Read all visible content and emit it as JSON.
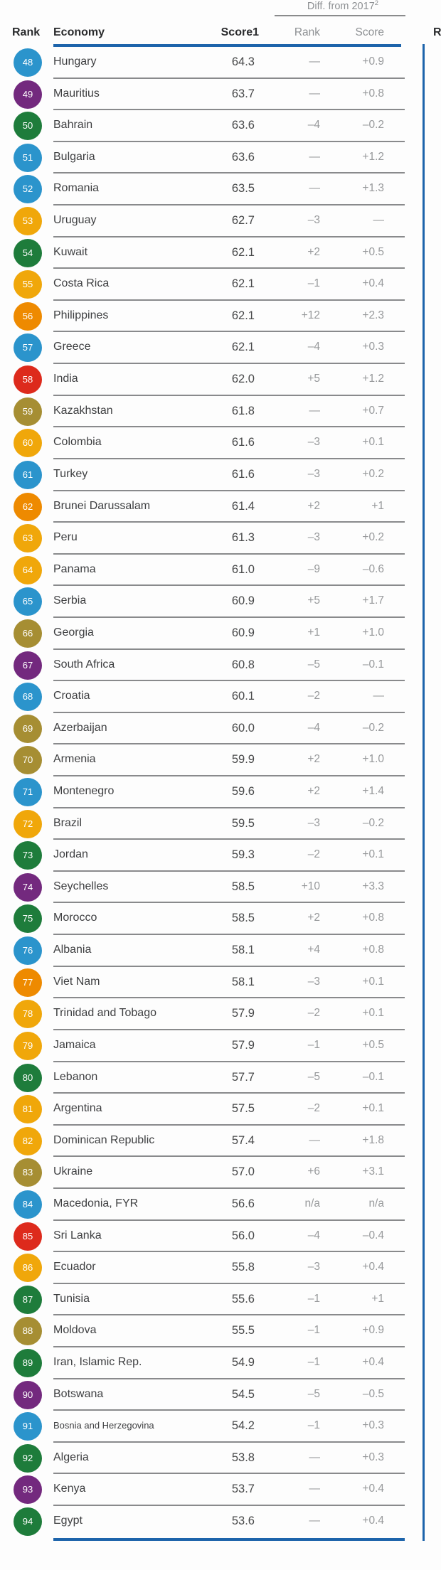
{
  "header": {
    "diff_group_label": "Diff. from 2017",
    "diff_group_footnote": "2",
    "rank_label": "Rank",
    "economy_label": "Economy",
    "score_label": "Score",
    "score_footnote": "1",
    "diff_rank_label": "Rank",
    "diff_score_label": "Score",
    "next_table_partial_label": "R"
  },
  "accent_colors": {
    "table_rule_blue": "#1d64ab",
    "separator_gray": "#898a8c"
  },
  "region_colors": {
    "europe-north-america": "#2b94cc",
    "sub-saharan-africa": "#73297e",
    "middle-east-north-africa": "#1e7c3b",
    "latin-america-caribbean": "#f0a70a",
    "east-asia-pacific": "#ee8a00",
    "south-asia": "#dd2a1c",
    "eurasia": "#a68e33"
  },
  "rows": [
    {
      "rank": "48",
      "economy": "Hungary",
      "score": "64.3",
      "diff_rank": "—",
      "diff_score": "+0.9",
      "region": "europe-north-america"
    },
    {
      "rank": "49",
      "economy": "Mauritius",
      "score": "63.7",
      "diff_rank": "—",
      "diff_score": "+0.8",
      "region": "sub-saharan-africa"
    },
    {
      "rank": "50",
      "economy": "Bahrain",
      "score": "63.6",
      "diff_rank": "–4",
      "diff_score": "–0.2",
      "region": "middle-east-north-africa"
    },
    {
      "rank": "51",
      "economy": "Bulgaria",
      "score": "63.6",
      "diff_rank": "—",
      "diff_score": "+1.2",
      "region": "europe-north-america"
    },
    {
      "rank": "52",
      "economy": "Romania",
      "score": "63.5",
      "diff_rank": "—",
      "diff_score": "+1.3",
      "region": "europe-north-america"
    },
    {
      "rank": "53",
      "economy": "Uruguay",
      "score": "62.7",
      "diff_rank": "–3",
      "diff_score": "—",
      "region": "latin-america-caribbean"
    },
    {
      "rank": "54",
      "economy": "Kuwait",
      "score": "62.1",
      "diff_rank": "+2",
      "diff_score": "+0.5",
      "region": "middle-east-north-africa"
    },
    {
      "rank": "55",
      "economy": "Costa Rica",
      "score": "62.1",
      "diff_rank": "–1",
      "diff_score": "+0.4",
      "region": "latin-america-caribbean"
    },
    {
      "rank": "56",
      "economy": "Philippines",
      "score": "62.1",
      "diff_rank": "+12",
      "diff_score": "+2.3",
      "region": "east-asia-pacific"
    },
    {
      "rank": "57",
      "economy": "Greece",
      "score": "62.1",
      "diff_rank": "–4",
      "diff_score": "+0.3",
      "region": "europe-north-america"
    },
    {
      "rank": "58",
      "economy": "India",
      "score": "62.0",
      "diff_rank": "+5",
      "diff_score": "+1.2",
      "region": "south-asia"
    },
    {
      "rank": "59",
      "economy": "Kazakhstan",
      "score": "61.8",
      "diff_rank": "—",
      "diff_score": "+0.7",
      "region": "eurasia"
    },
    {
      "rank": "60",
      "economy": "Colombia",
      "score": "61.6",
      "diff_rank": "–3",
      "diff_score": "+0.1",
      "region": "latin-america-caribbean"
    },
    {
      "rank": "61",
      "economy": "Turkey",
      "score": "61.6",
      "diff_rank": "–3",
      "diff_score": "+0.2",
      "region": "europe-north-america"
    },
    {
      "rank": "62",
      "economy": "Brunei Darussalam",
      "score": "61.4",
      "diff_rank": "+2",
      "diff_score": "+1",
      "region": "east-asia-pacific"
    },
    {
      "rank": "63",
      "economy": "Peru",
      "score": "61.3",
      "diff_rank": "–3",
      "diff_score": "+0.2",
      "region": "latin-america-caribbean"
    },
    {
      "rank": "64",
      "economy": "Panama",
      "score": "61.0",
      "diff_rank": "–9",
      "diff_score": "–0.6",
      "region": "latin-america-caribbean"
    },
    {
      "rank": "65",
      "economy": "Serbia",
      "score": "60.9",
      "diff_rank": "+5",
      "diff_score": "+1.7",
      "region": "europe-north-america"
    },
    {
      "rank": "66",
      "economy": "Georgia",
      "score": "60.9",
      "diff_rank": "+1",
      "diff_score": "+1.0",
      "region": "eurasia"
    },
    {
      "rank": "67",
      "economy": "South Africa",
      "score": "60.8",
      "diff_rank": "–5",
      "diff_score": "–0.1",
      "region": "sub-saharan-africa"
    },
    {
      "rank": "68",
      "economy": "Croatia",
      "score": "60.1",
      "diff_rank": "–2",
      "diff_score": "—",
      "region": "europe-north-america"
    },
    {
      "rank": "69",
      "economy": "Azerbaijan",
      "score": "60.0",
      "diff_rank": "–4",
      "diff_score": "–0.2",
      "region": "eurasia"
    },
    {
      "rank": "70",
      "economy": "Armenia",
      "score": "59.9",
      "diff_rank": "+2",
      "diff_score": "+1.0",
      "region": "eurasia"
    },
    {
      "rank": "71",
      "economy": "Montenegro",
      "score": "59.6",
      "diff_rank": "+2",
      "diff_score": "+1.4",
      "region": "europe-north-america"
    },
    {
      "rank": "72",
      "economy": "Brazil",
      "score": "59.5",
      "diff_rank": "–3",
      "diff_score": "–0.2",
      "region": "latin-america-caribbean"
    },
    {
      "rank": "73",
      "economy": "Jordan",
      "score": "59.3",
      "diff_rank": "–2",
      "diff_score": "+0.1",
      "region": "middle-east-north-africa"
    },
    {
      "rank": "74",
      "economy": "Seychelles",
      "score": "58.5",
      "diff_rank": "+10",
      "diff_score": "+3.3",
      "region": "sub-saharan-africa"
    },
    {
      "rank": "75",
      "economy": "Morocco",
      "score": "58.5",
      "diff_rank": "+2",
      "diff_score": "+0.8",
      "region": "middle-east-north-africa"
    },
    {
      "rank": "76",
      "economy": "Albania",
      "score": "58.1",
      "diff_rank": "+4",
      "diff_score": "+0.8",
      "region": "europe-north-america"
    },
    {
      "rank": "77",
      "economy": "Viet Nam",
      "score": "58.1",
      "diff_rank": "–3",
      "diff_score": "+0.1",
      "region": "east-asia-pacific"
    },
    {
      "rank": "78",
      "economy": "Trinidad and Tobago",
      "score": "57.9",
      "diff_rank": "–2",
      "diff_score": "+0.1",
      "region": "latin-america-caribbean"
    },
    {
      "rank": "79",
      "economy": "Jamaica",
      "score": "57.9",
      "diff_rank": "–1",
      "diff_score": "+0.5",
      "region": "latin-america-caribbean"
    },
    {
      "rank": "80",
      "economy": "Lebanon",
      "score": "57.7",
      "diff_rank": "–5",
      "diff_score": "–0.1",
      "region": "middle-east-north-africa"
    },
    {
      "rank": "81",
      "economy": "Argentina",
      "score": "57.5",
      "diff_rank": "–2",
      "diff_score": "+0.1",
      "region": "latin-america-caribbean"
    },
    {
      "rank": "82",
      "economy": "Dominican Republic",
      "score": "57.4",
      "diff_rank": "—",
      "diff_score": "+1.8",
      "region": "latin-america-caribbean"
    },
    {
      "rank": "83",
      "economy": "Ukraine",
      "score": "57.0",
      "diff_rank": "+6",
      "diff_score": "+3.1",
      "region": "eurasia"
    },
    {
      "rank": "84",
      "economy": "Macedonia, FYR",
      "score": "56.6",
      "diff_rank": "n/a",
      "diff_score": "n/a",
      "region": "europe-north-america"
    },
    {
      "rank": "85",
      "economy": "Sri Lanka",
      "score": "56.0",
      "diff_rank": "–4",
      "diff_score": "–0.4",
      "region": "south-asia"
    },
    {
      "rank": "86",
      "economy": "Ecuador",
      "score": "55.8",
      "diff_rank": "–3",
      "diff_score": "+0.4",
      "region": "latin-america-caribbean"
    },
    {
      "rank": "87",
      "economy": "Tunisia",
      "score": "55.6",
      "diff_rank": "–1",
      "diff_score": "+1",
      "region": "middle-east-north-africa"
    },
    {
      "rank": "88",
      "economy": "Moldova",
      "score": "55.5",
      "diff_rank": "–1",
      "diff_score": "+0.9",
      "region": "eurasia"
    },
    {
      "rank": "89",
      "economy": "Iran, Islamic Rep.",
      "score": "54.9",
      "diff_rank": "–1",
      "diff_score": "+0.4",
      "region": "middle-east-north-africa"
    },
    {
      "rank": "90",
      "economy": "Botswana",
      "score": "54.5",
      "diff_rank": "–5",
      "diff_score": "–0.5",
      "region": "sub-saharan-africa"
    },
    {
      "rank": "91",
      "economy": "Bosnia and Herzegovina",
      "score": "54.2",
      "diff_rank": "–1",
      "diff_score": "+0.3",
      "region": "europe-north-america",
      "small": true
    },
    {
      "rank": "92",
      "economy": "Algeria",
      "score": "53.8",
      "diff_rank": "—",
      "diff_score": "+0.3",
      "region": "middle-east-north-africa"
    },
    {
      "rank": "93",
      "economy": "Kenya",
      "score": "53.7",
      "diff_rank": "—",
      "diff_score": "+0.4",
      "region": "sub-saharan-africa"
    },
    {
      "rank": "94",
      "economy": "Egypt",
      "score": "53.6",
      "diff_rank": "—",
      "diff_score": "+0.4",
      "region": "middle-east-north-africa"
    }
  ]
}
